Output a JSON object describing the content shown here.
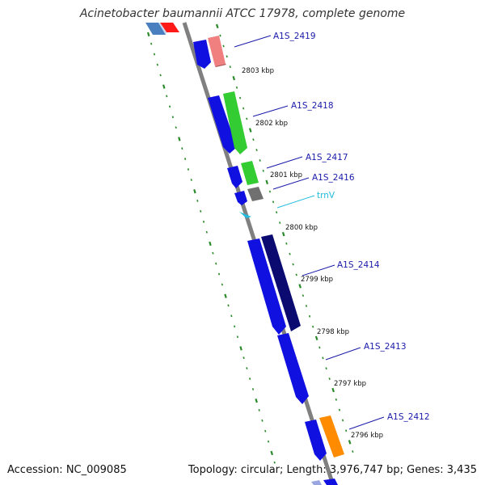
{
  "title": "Acinetobacter baumannii ATCC 17978, complete genome",
  "footer": {
    "accession": "Accession: NC_009085",
    "summary": "Topology: circular; Length: 3,976,747 bp; Genes: 3,435"
  },
  "colors": {
    "backbone": "#808080",
    "ticks": "#2a8a2a",
    "cds_forward": "#1010e0",
    "cds_dark": "#0a0a70",
    "pink": "#f08080",
    "green": "#33cc33",
    "grey": "#707070",
    "orange": "#ff8c00",
    "trna": "#22bbdd",
    "label": "#1a1aaa",
    "trna_label": "#22bbdd"
  },
  "genes": [
    {
      "id": "A1S_2419",
      "label": "A1S_2419",
      "label_color": "label"
    },
    {
      "id": "A1S_2418",
      "label": "A1S_2418",
      "label_color": "label"
    },
    {
      "id": "A1S_2417",
      "label": "A1S_2417",
      "label_color": "label"
    },
    {
      "id": "A1S_2416",
      "label": "A1S_2416",
      "label_color": "label"
    },
    {
      "id": "trnV",
      "label": "trnV",
      "label_color": "trna_label"
    },
    {
      "id": "A1S_2414",
      "label": "A1S_2414",
      "label_color": "label"
    },
    {
      "id": "A1S_2413",
      "label": "A1S_2413",
      "label_color": "label"
    },
    {
      "id": "A1S_2412",
      "label": "A1S_2412",
      "label_color": "label"
    }
  ],
  "kbp_labels": [
    "2803 kbp",
    "2802 kbp",
    "2801 kbp",
    "2800 kbp",
    "2799 kbp",
    "2798 kbp",
    "2797 kbp",
    "2796 kbp"
  ]
}
